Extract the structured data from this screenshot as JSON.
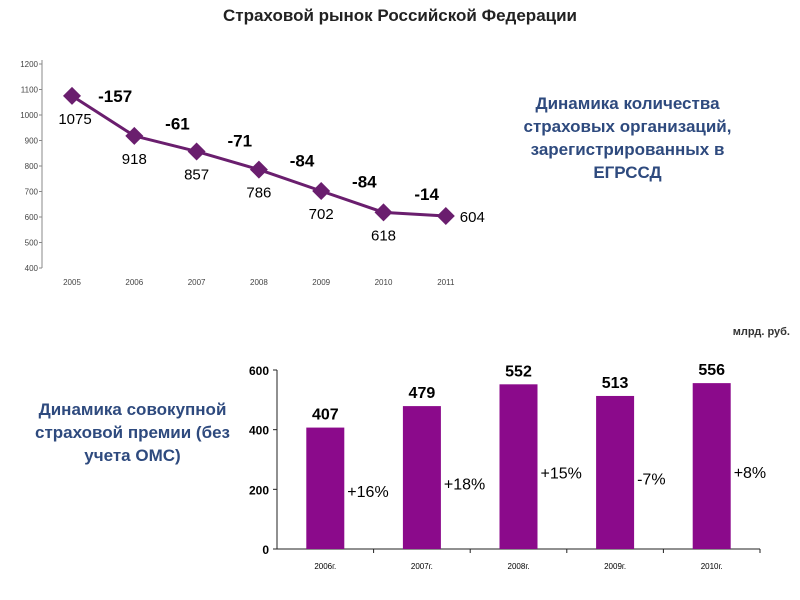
{
  "title": "Страховой рынок Российской Федерации",
  "line_description": "Динамика количества страховых организаций, зарегистрированных в ЕГРССД",
  "bar_description": "Динамика совокупной страховой премии (без учета ОМС)",
  "bar_unit": "млрд. руб.",
  "chart_data": [
    {
      "type": "line",
      "x": [
        "2005",
        "2006",
        "2007",
        "2008",
        "2009",
        "2010",
        "2011"
      ],
      "values": [
        1075,
        918,
        857,
        786,
        702,
        618,
        604
      ],
      "value_labels": [
        "1075",
        "918",
        "857",
        "786",
        "702",
        "618",
        "604"
      ],
      "change_labels": [
        "-157",
        "-61",
        "-71",
        "-84",
        "-84",
        "-14"
      ],
      "yticks": [
        "400",
        "500",
        "600",
        "700",
        "800",
        "900",
        "1000",
        "1100",
        "1200"
      ],
      "ylim": [
        400,
        1200
      ],
      "color": "#6a1e6e",
      "marker": "diamond",
      "grid": false
    },
    {
      "type": "bar",
      "categories": [
        "2006г.",
        "2007г.",
        "2008г.",
        "2009г.",
        "2010г."
      ],
      "values": [
        407,
        479,
        552,
        513,
        556
      ],
      "value_labels": [
        "407",
        "479",
        "552",
        "513",
        "556"
      ],
      "change_labels": [
        "+16%",
        "+18%",
        "+15%",
        "-7%",
        "+8%"
      ],
      "yticks": [
        "0",
        "200",
        "400",
        "600"
      ],
      "ylim": [
        0,
        600
      ],
      "color": "#8b0a8b",
      "grid": false
    }
  ]
}
